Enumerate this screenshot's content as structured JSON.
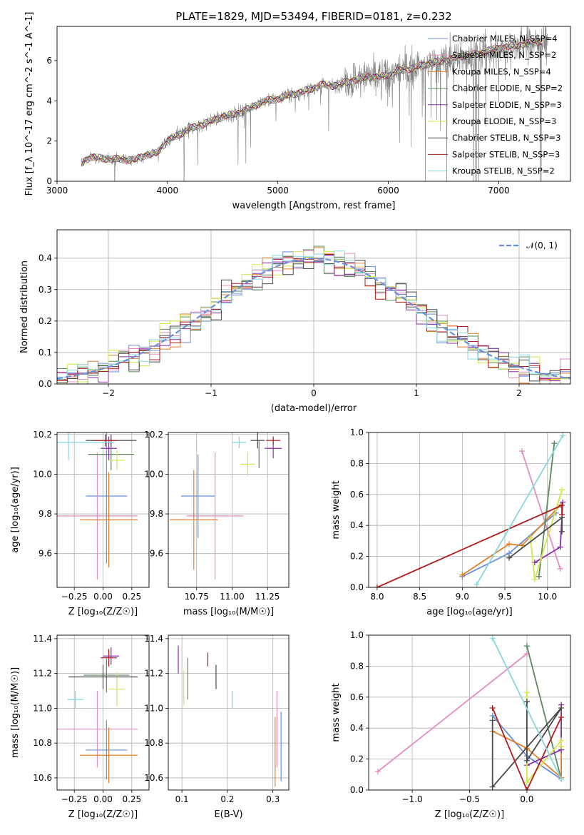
{
  "figure": {
    "suptitle": "PLATE=1829, MJD=53494, FIBERID=0181, z=0.232"
  },
  "colors": {
    "chabrier_miles": "#6a8fd8",
    "salpeter_miles": "#e58dc2",
    "kroupa_miles": "#e27f2b",
    "chabrier_elodie": "#5a8a5f",
    "salpeter_elodie": "#8a2ea8",
    "kroupa_elodie": "#cfe84a",
    "chabrier_stelib": "#4a4a4a",
    "salpeter_stelib": "#b01c1c",
    "kroupa_stelib": "#86d8de",
    "data": "#808080",
    "normal": "#6a8fd8",
    "grid": "#b0b0b0"
  },
  "chart_data": [
    {
      "panel": "spectrum",
      "type": "line",
      "xlabel": "wavelength [Angstrom, rest frame]",
      "ylabel": "Flux [f_λ 10^-17 erg cm^-2 s^-1 A^-1]",
      "xlim": [
        3000,
        7650
      ],
      "ylim": [
        0,
        7.7
      ],
      "xticks": [
        "3000",
        "4000",
        "5000",
        "6000",
        "7000"
      ],
      "yticks": [
        "0",
        "2",
        "4",
        "6"
      ],
      "legend_position": "top-right",
      "legend": [
        "Chabrier MILES, N_SSP=4",
        "Salpeter MILES, N_SSP=2",
        "Kroupa MILES, N_SSP=4",
        "Chabrier ELODIE, N_SSP=2",
        "Salpeter ELODIE, N_SSP=3",
        "Kroupa ELODIE, N_SSP=3",
        "Chabrier STELIB, N_SSP=3",
        "Salpeter STELIB, N_SSP=3",
        "Kroupa STELIB, N_SSP=2"
      ],
      "continuum": {
        "x": [
          3220,
          3300,
          3400,
          3500,
          3600,
          3700,
          3800,
          3900,
          4000,
          4100,
          4200,
          4300,
          4400,
          4500,
          4600,
          4700,
          4800,
          4900,
          5000,
          5100,
          5200,
          5300,
          5400,
          5500,
          5600,
          5700,
          5800,
          5900,
          6000,
          6100,
          6200,
          6300,
          6400,
          6500,
          6600,
          6700,
          6800,
          6900,
          7000,
          7100,
          7200,
          7300,
          7400
        ],
        "y": [
          0.9,
          1.2,
          1.15,
          1.1,
          1.1,
          1.05,
          1.3,
          1.4,
          2.0,
          2.3,
          2.6,
          2.8,
          3.0,
          3.2,
          3.35,
          3.5,
          3.8,
          4.0,
          4.1,
          4.3,
          4.4,
          4.6,
          4.8,
          4.75,
          4.9,
          5.05,
          5.2,
          5.15,
          5.3,
          5.5,
          5.6,
          5.75,
          5.9,
          6.0,
          6.1,
          6.3,
          6.3,
          6.5,
          6.6,
          6.7,
          6.8,
          6.9,
          7.0
        ]
      }
    },
    {
      "panel": "residuals",
      "type": "line",
      "xlabel": "(data-model)/error",
      "ylabel": "Normed distribution",
      "xlim": [
        -2.5,
        2.5
      ],
      "ylim": [
        0,
        0.49
      ],
      "xticks": [
        "−2",
        "−1",
        "0",
        "1",
        "2"
      ],
      "yticks": [
        "0.0",
        "0.1",
        "0.2",
        "0.3",
        "0.4"
      ],
      "legend": [
        "𝒩(0, 1)"
      ],
      "legend_position": "top-right",
      "bin_width": 0.1
    },
    {
      "panel": "age_vs_Z",
      "type": "scatter",
      "xlabel": "Z [log₁₀(Z/Z☉)]",
      "ylabel": "age  [log₁₀(age/yr)]",
      "xlim": [
        -0.4,
        0.4
      ],
      "ylim": [
        9.43,
        10.21
      ],
      "xticks": [
        "−0.25",
        "0.00",
        "0.25"
      ],
      "yticks": [
        "9.6",
        "9.8",
        "10.0",
        "10.2"
      ],
      "points": [
        {
          "model": "chabrier_miles",
          "x": 0.03,
          "xerr": 0.18,
          "y": 9.89,
          "yerr": 0.34
        },
        {
          "model": "salpeter_miles",
          "x": -0.05,
          "xerr": 0.35,
          "y": 9.79,
          "yerr": 0.32
        },
        {
          "model": "kroupa_miles",
          "x": 0.05,
          "xerr": 0.25,
          "y": 9.77,
          "yerr": 0.24
        },
        {
          "model": "chabrier_elodie",
          "x": 0.07,
          "xerr": 0.2,
          "y": 10.1,
          "yerr": 0.08
        },
        {
          "model": "salpeter_elodie",
          "x": 0.05,
          "xerr": 0.07,
          "y": 10.13,
          "yerr": 0.06
        },
        {
          "model": "kroupa_elodie",
          "x": 0.12,
          "xerr": 0.07,
          "y": 10.07,
          "yerr": 0.05
        },
        {
          "model": "chabrier_stelib",
          "x": 0.07,
          "xerr": 0.22,
          "y": 10.17,
          "yerr": 0.03
        },
        {
          "model": "salpeter_stelib",
          "x": 0.02,
          "xerr": 0.1,
          "y": 10.17,
          "yerr": 0.03
        },
        {
          "model": "kroupa_stelib",
          "x": -0.3,
          "xerr": 0.4,
          "y": 10.16,
          "yerr": 0.09
        }
      ]
    },
    {
      "panel": "age_vs_mass",
      "type": "scatter",
      "xlabel": "mass [log₁₀(M/M☉)]",
      "ylabel": "",
      "xlim": [
        10.55,
        11.4
      ],
      "ylim": [
        9.43,
        10.21
      ],
      "xticks": [
        "10.75",
        "11.00",
        "11.25"
      ],
      "yticks": [
        "9.6",
        "9.8",
        "10.0",
        "10.2"
      ],
      "points": [
        {
          "model": "chabrier_miles",
          "x": 10.76,
          "xerr": 0.12,
          "y": 9.89,
          "yerr": 0.21
        },
        {
          "model": "salpeter_miles",
          "x": 10.88,
          "xerr": 0.2,
          "y": 9.79,
          "yerr": 0.32
        },
        {
          "model": "kroupa_miles",
          "x": 10.73,
          "xerr": 0.17,
          "y": 9.77,
          "yerr": 0.25
        },
        {
          "model": "chabrier_elodie",
          "x": 11.19,
          "xerr": 0.0,
          "y": 10.1,
          "yerr": 0.07
        },
        {
          "model": "salpeter_elodie",
          "x": 11.29,
          "xerr": 0.06,
          "y": 10.13,
          "yerr": 0.05
        },
        {
          "model": "kroupa_elodie",
          "x": 11.11,
          "xerr": 0.05,
          "y": 10.05,
          "yerr": 0.06
        },
        {
          "model": "chabrier_stelib",
          "x": 11.18,
          "xerr": 0.05,
          "y": 10.17,
          "yerr": 0.04
        },
        {
          "model": "salpeter_stelib",
          "x": 11.29,
          "xerr": 0.05,
          "y": 10.17,
          "yerr": 0.02
        },
        {
          "model": "kroupa_stelib",
          "x": 11.05,
          "xerr": 0.05,
          "y": 10.16,
          "yerr": 0.03
        }
      ]
    },
    {
      "panel": "weight_vs_age",
      "type": "line",
      "xlabel": "age  [log₁₀(age/yr)]",
      "ylabel": "mass weight",
      "xlim": [
        7.9,
        10.27
      ],
      "ylim": [
        0,
        1.0
      ],
      "xticks": [
        "8.0",
        "8.5",
        "9.0",
        "9.5",
        "10.0"
      ],
      "yticks": [
        "0.0",
        "0.2",
        "0.4",
        "0.6",
        "0.8",
        "1.0"
      ],
      "series": [
        {
          "model": "chabrier_miles",
          "x": [
            9.0,
            9.55,
            10.1
          ],
          "y": [
            0.07,
            0.22,
            0.48
          ]
        },
        {
          "model": "salpeter_miles",
          "x": [
            9.7,
            10.15
          ],
          "y": [
            0.88,
            0.12
          ]
        },
        {
          "model": "kroupa_miles",
          "x": [
            9.0,
            9.55,
            9.7,
            10.15
          ],
          "y": [
            0.08,
            0.28,
            0.27,
            0.53
          ]
        },
        {
          "model": "chabrier_elodie",
          "x": [
            9.9,
            10.08
          ],
          "y": [
            0.07,
            0.93
          ]
        },
        {
          "model": "salpeter_elodie",
          "x": [
            9.85,
            10.15,
            10.18
          ],
          "y": [
            0.16,
            0.26,
            0.55
          ]
        },
        {
          "model": "kroupa_elodie",
          "x": [
            9.8,
            9.85,
            10.17
          ],
          "y": [
            0.32,
            0.05,
            0.63
          ]
        },
        {
          "model": "chabrier_stelib",
          "x": [
            9.55,
            10.17,
            10.17
          ],
          "y": [
            0.19,
            0.45,
            0.36
          ]
        },
        {
          "model": "salpeter_stelib",
          "x": [
            8.0,
            10.17,
            10.17
          ],
          "y": [
            0.0,
            0.53,
            0.47
          ]
        },
        {
          "model": "kroupa_stelib",
          "x": [
            9.17,
            10.18
          ],
          "y": [
            0.02,
            0.98
          ]
        }
      ]
    },
    {
      "panel": "mass_vs_Z",
      "type": "scatter",
      "xlabel": "Z [log₁₀(Z/Z☉)]",
      "ylabel": "mass [log₁₀(M/M☉)]",
      "xlim": [
        -0.4,
        0.4
      ],
      "ylim": [
        10.53,
        11.42
      ],
      "xticks": [
        "−0.25",
        "0.00",
        "0.25"
      ],
      "yticks": [
        "10.6",
        "10.8",
        "11.0",
        "11.2",
        "11.4"
      ],
      "points": [
        {
          "model": "chabrier_miles",
          "x": 0.03,
          "xerr": 0.18,
          "y": 10.76,
          "yerr": 0.17
        },
        {
          "model": "salpeter_miles",
          "x": -0.05,
          "xerr": 0.35,
          "y": 10.88,
          "yerr": 0.22
        },
        {
          "model": "kroupa_miles",
          "x": 0.05,
          "xerr": 0.25,
          "y": 10.73,
          "yerr": 0.16
        },
        {
          "model": "chabrier_elodie",
          "x": 0.03,
          "xerr": 0.2,
          "y": 11.19,
          "yerr": 0.1
        },
        {
          "model": "salpeter_elodie",
          "x": 0.07,
          "xerr": 0.07,
          "y": 11.3,
          "yerr": 0.05
        },
        {
          "model": "kroupa_elodie",
          "x": 0.12,
          "xerr": 0.07,
          "y": 11.11,
          "yerr": 0.1
        },
        {
          "model": "chabrier_stelib",
          "x": 0.0,
          "xerr": 0.3,
          "y": 11.18,
          "yerr": 0.07
        },
        {
          "model": "salpeter_stelib",
          "x": 0.05,
          "xerr": 0.07,
          "y": 11.29,
          "yerr": 0.05
        },
        {
          "model": "kroupa_stelib",
          "x": -0.24,
          "xerr": 0.07,
          "y": 11.05,
          "yerr": 0.05
        }
      ]
    },
    {
      "panel": "mass_vs_ebv",
      "type": "scatter",
      "xlabel": "E(B-V)",
      "ylabel": "",
      "xlim": [
        0.07,
        0.335
      ],
      "ylim": [
        10.53,
        11.42
      ],
      "xticks": [
        "0.1",
        "0.2",
        "0.3"
      ],
      "yticks": [
        "10.6",
        "10.8",
        "11.0",
        "11.2",
        "11.4"
      ],
      "points": [
        {
          "model": "chabrier_miles",
          "x": 0.318,
          "y": 10.78,
          "yerr": 0.2
        },
        {
          "model": "salpeter_miles",
          "x": 0.309,
          "y": 10.88,
          "yerr": 0.22
        },
        {
          "model": "kroupa_miles",
          "x": 0.305,
          "y": 10.75,
          "yerr": 0.2
        },
        {
          "model": "chabrier_elodie",
          "x": 0.113,
          "y": 11.17,
          "yerr": 0.12
        },
        {
          "model": "salpeter_elodie",
          "x": 0.092,
          "y": 11.28,
          "yerr": 0.08
        },
        {
          "model": "kroupa_elodie",
          "x": 0.104,
          "y": 11.12,
          "yerr": 0.1
        },
        {
          "model": "chabrier_stelib",
          "x": 0.175,
          "y": 11.18,
          "yerr": 0.07
        },
        {
          "model": "salpeter_stelib",
          "x": 0.157,
          "y": 11.28,
          "yerr": 0.04
        },
        {
          "model": "kroupa_stelib",
          "x": 0.211,
          "y": 11.05,
          "yerr": 0.05
        }
      ]
    },
    {
      "panel": "weight_vs_Z",
      "type": "line",
      "xlabel": "Z [log₁₀(Z/Z☉)]",
      "ylabel": "mass weight",
      "xlim": [
        -1.38,
        0.38
      ],
      "ylim": [
        0,
        1.0
      ],
      "xticks": [
        "−1.0",
        "−0.5",
        "0.0"
      ],
      "yticks": [
        "0.0",
        "0.2",
        "0.4",
        "0.6",
        "0.8",
        "1.0"
      ],
      "series": [
        {
          "model": "chabrier_miles",
          "x": [
            -0.3,
            0.0,
            0.3
          ],
          "y": [
            0.48,
            0.22,
            0.07
          ]
        },
        {
          "model": "salpeter_miles",
          "x": [
            -1.3,
            0.0
          ],
          "y": [
            0.12,
            0.88
          ]
        },
        {
          "model": "kroupa_miles",
          "x": [
            -0.3,
            0.0,
            0.3,
            0.3
          ],
          "y": [
            0.38,
            0.27,
            0.08,
            0.28
          ]
        },
        {
          "model": "chabrier_elodie",
          "x": [
            0.0,
            0.3
          ],
          "y": [
            0.93,
            0.07
          ]
        },
        {
          "model": "salpeter_elodie",
          "x": [
            0.0,
            0.3,
            0.3
          ],
          "y": [
            0.16,
            0.26,
            0.55
          ]
        },
        {
          "model": "kroupa_elodie",
          "x": [
            0.0,
            0.0,
            0.3,
            0.3
          ],
          "y": [
            0.63,
            0.05,
            0.32,
            0.28
          ]
        },
        {
          "model": "chabrier_stelib",
          "x": [
            -0.3,
            -0.3,
            0.3,
            0.0,
            0.0
          ],
          "y": [
            0.45,
            0.02,
            0.53,
            0.19,
            0.57
          ]
        },
        {
          "model": "salpeter_stelib",
          "x": [
            -0.3,
            0.0,
            0.3
          ],
          "y": [
            0.53,
            0.0,
            0.47
          ]
        },
        {
          "model": "kroupa_stelib",
          "x": [
            -0.3,
            0.3
          ],
          "y": [
            0.98,
            0.07
          ]
        }
      ]
    }
  ]
}
